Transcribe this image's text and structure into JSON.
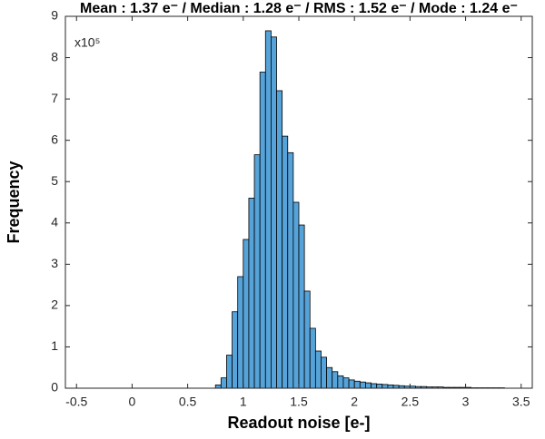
{
  "chart_data": {
    "type": "histogram",
    "title": "Mean : 1.37 e⁻ / Median : 1.28 e⁻ / RMS : 1.52 e⁻ / Mode : 1.24 e⁻",
    "y_multiplier": "x10⁵",
    "x_label": "Readout noise [e-]",
    "y_label": "Frequency",
    "color": "#56a3da",
    "edge_color": "#000000",
    "grid": false,
    "xlim": [
      -0.6,
      3.6
    ],
    "ylim": [
      0,
      9
    ],
    "xticks": [
      -0.5,
      0,
      0.5,
      1,
      1.5,
      2,
      2.5,
      3,
      3.5
    ],
    "yticks": [
      0,
      1,
      2,
      3,
      4,
      5,
      6,
      7,
      8,
      9
    ],
    "bins": [
      0.75,
      0.8,
      0.85,
      0.9,
      0.95,
      1.0,
      1.05,
      1.1,
      1.15,
      1.2,
      1.25,
      1.3,
      1.35,
      1.4,
      1.45,
      1.5,
      1.55,
      1.6,
      1.65,
      1.7,
      1.75,
      1.8,
      1.85,
      1.9,
      1.95,
      2.0,
      2.05,
      2.1,
      2.15,
      2.2,
      2.25,
      2.3,
      2.35,
      2.4,
      2.45,
      2.5,
      2.55,
      2.6,
      2.65,
      2.7,
      2.75,
      2.8,
      2.85,
      2.9,
      2.95,
      3.0,
      3.05,
      3.1,
      3.15,
      3.2,
      3.25,
      3.3,
      3.35
    ],
    "values": [
      0.08,
      0.25,
      0.8,
      1.85,
      2.7,
      3.6,
      4.6,
      5.65,
      7.65,
      8.65,
      8.5,
      7.2,
      6.1,
      5.7,
      4.5,
      3.95,
      2.35,
      1.45,
      0.9,
      0.75,
      0.5,
      0.4,
      0.3,
      0.25,
      0.2,
      0.17,
      0.15,
      0.13,
      0.11,
      0.1,
      0.09,
      0.08,
      0.07,
      0.06,
      0.05,
      0.05,
      0.04,
      0.04,
      0.03,
      0.03,
      0.03,
      0.02,
      0.02,
      0.02,
      0.02,
      0.02,
      0.01,
      0.01,
      0.01,
      0.01,
      0.01,
      0.01
    ]
  }
}
